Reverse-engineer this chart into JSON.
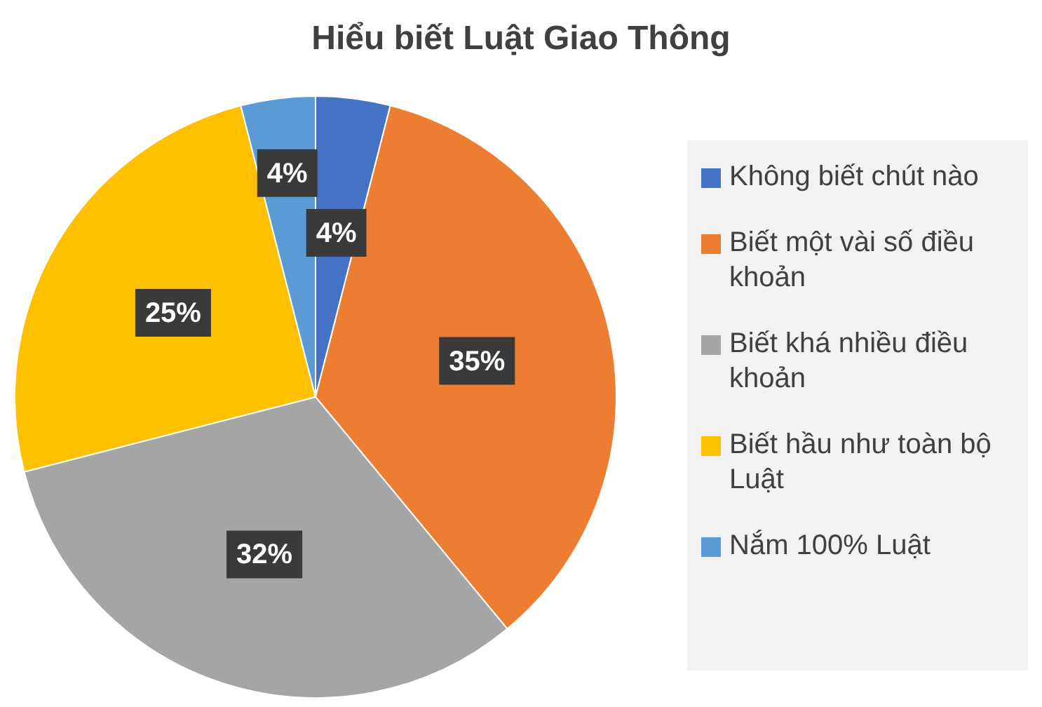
{
  "chart_data": {
    "type": "pie",
    "title": "Hiểu biết Luật Giao Thông",
    "categories": [
      "Không biết chút nào",
      "Biết một vài số điều khoản",
      "Biết khá nhiều điều khoản",
      "Biết hầu như toàn bộ Luật",
      "Nắm 100% Luật"
    ],
    "values": [
      4,
      35,
      32,
      25,
      4
    ],
    "colors": [
      "#4472c4",
      "#ed7d31",
      "#a5a5a5",
      "#ffc000",
      "#5b9bd5"
    ],
    "value_labels": [
      "4%",
      "35%",
      "32%",
      "25%",
      "4%"
    ],
    "legend": "right"
  }
}
